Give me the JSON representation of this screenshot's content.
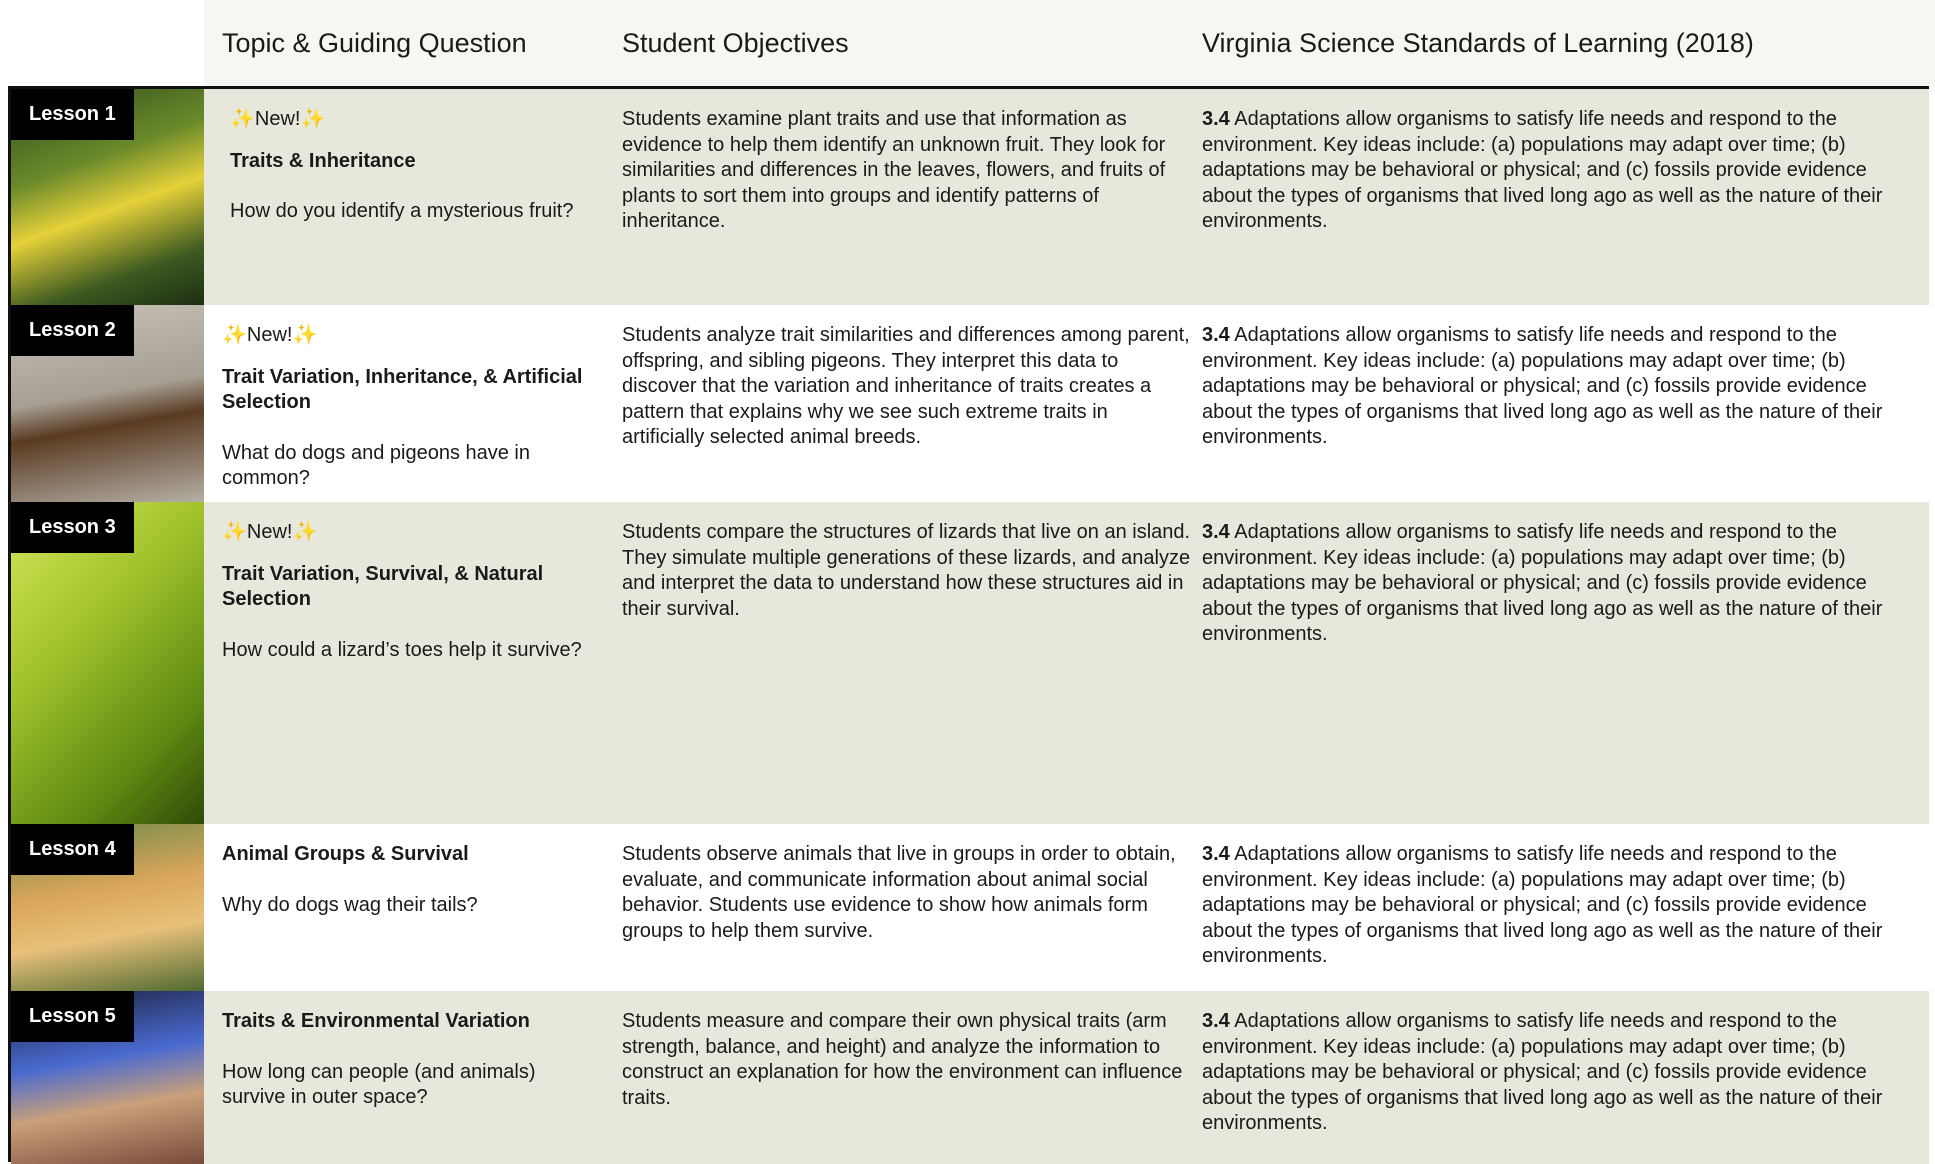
{
  "header": {
    "columns": [
      "Topic & Guiding Question",
      "Student Objectives",
      "Virginia Science Standards of Learning (2018)"
    ]
  },
  "rows": [
    {
      "lesson": "Lesson 1",
      "new": "✨New!✨",
      "title": "Traits & Inheritance",
      "question": "How do you identify a mysterious fruit?",
      "objectives": "Students examine plant traits and use that information as evidence to help them identify an unknown fruit. They look for similarities and differences in the leaves, flowers, and fruits of plants to sort them into groups and identify patterns of inheritance.",
      "standard_code": "3.4",
      "standard_text": "Adaptations allow organisms to satisfy life needs and respond to the environment. Key ideas include: (a) populations may adapt over time; (b) adaptations may be behavioral or physical; and (c) fossils provide evidence about the types of organisms that lived long ago as well as the nature of their environments."
    },
    {
      "lesson": "Lesson 2",
      "new": "✨New!✨",
      "title": "Trait Variation, Inheritance, & Artificial Selection",
      "question": "What do dogs and pigeons have in common?",
      "objectives": "Students analyze trait similarities and differences among parent, offspring, and sibling pigeons. They interpret this data to discover that the variation and inheritance of traits creates a pattern that explains why we see such extreme traits in artificially selected animal breeds.",
      "standard_code": "3.4",
      "standard_text": "Adaptations allow organisms to satisfy life needs and respond to the environment. Key ideas include: (a) populations may adapt over time; (b) adaptations may be behavioral or physical; and (c) fossils provide evidence about the types of organisms that lived long ago as well as the nature of their environments."
    },
    {
      "lesson": "Lesson 3",
      "new": "✨New!✨",
      "title": "Trait Variation, Survival, & Natural Selection",
      "question": "How could a lizard’s toes help it survive?",
      "objectives": "Students compare the structures of lizards that live on an island. They simulate multiple generations of these lizards, and analyze and interpret the data to understand how these structures aid in their survival.",
      "standard_code": "3.4",
      "standard_text": "Adaptations allow organisms to satisfy life needs and respond to the environment. Key ideas include: (a) populations may adapt over time; (b) adaptations may be behavioral or physical; and (c) fossils provide evidence about the types of organisms that lived long ago as well as the nature of their environments."
    },
    {
      "lesson": "Lesson 4",
      "title": "Animal Groups & Survival",
      "question": "Why do dogs wag their tails?",
      "objectives": "Students observe animals that live in groups in order to obtain, evaluate, and communicate information about animal social behavior. Students use evidence to show how animals form groups to help them survive.",
      "standard_code": "3.4",
      "standard_text": "Adaptations allow organisms to satisfy life needs and respond to the environment. Key ideas include: (a) populations may adapt over time; (b) adaptations may be behavioral or physical; and (c) fossils provide evidence about the types of organisms that lived long ago as well as the nature of their environments."
    },
    {
      "lesson": "Lesson 5",
      "title": "Traits & Environmental Variation",
      "question": "How long can people (and animals) survive in outer space?",
      "objectives": "Students measure and compare their own physical traits (arm strength, balance, and height) and analyze the information to construct an explanation for how the environment can influence traits.",
      "standard_code": "3.4",
      "standard_text": "Adaptations allow organisms to satisfy life needs and respond to the environment. Key ideas include: (a) populations may adapt over time; (b) adaptations may be behavioral or physical; and (c) fossils provide evidence about the types of organisms that lived long ago as well as the nature of their environments."
    }
  ]
}
